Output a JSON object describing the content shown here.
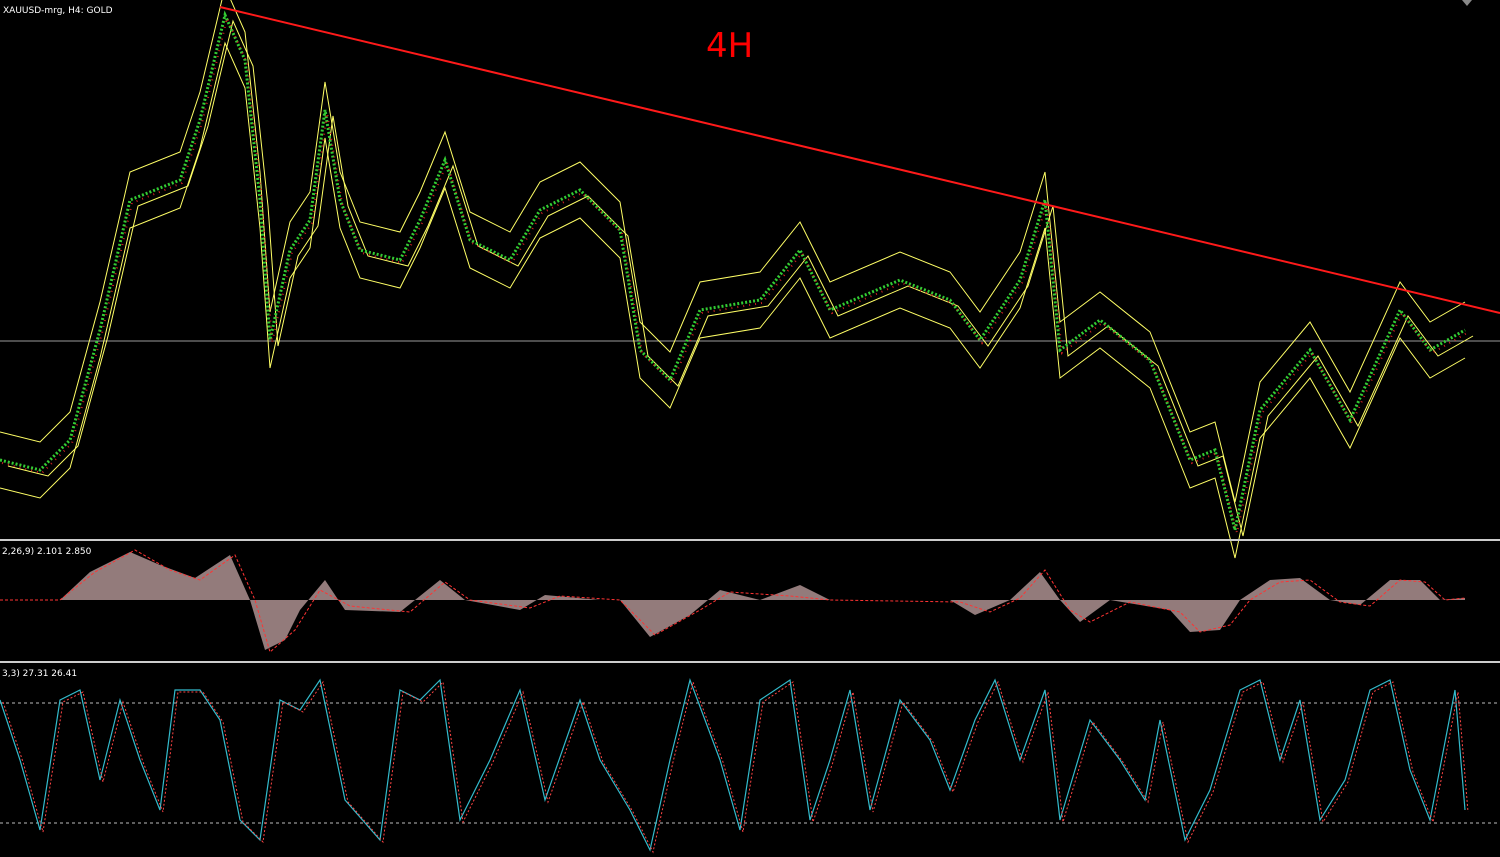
{
  "header": {
    "symbol": "XAUUSD-mrg, H4:  GOLD"
  },
  "annotation": {
    "label": "4H"
  },
  "macd_panel": {
    "label": "2,26,9) 2.101 2.850"
  },
  "stochastic_panel": {
    "label": "3,3) 27.31 26.41"
  }
}
